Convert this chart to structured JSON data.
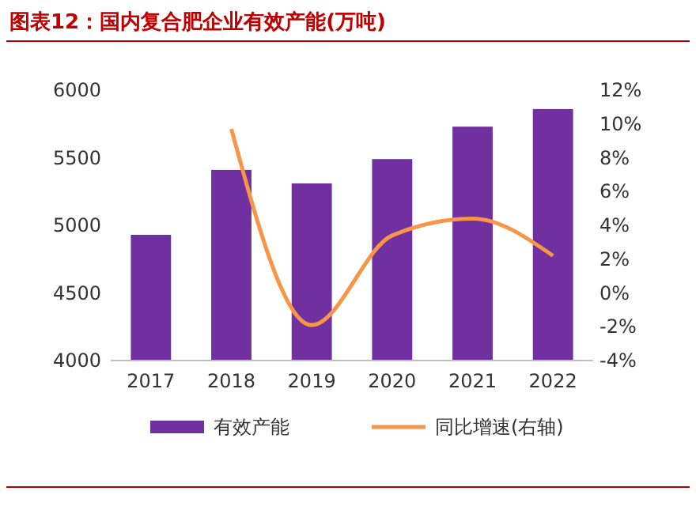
{
  "chart_data": {
    "type": "bar",
    "title": "图表12：国内复合肥企业有效产能(万吨)",
    "categories": [
      "2017",
      "2018",
      "2019",
      "2020",
      "2021",
      "2022"
    ],
    "series": [
      {
        "name": "有效产能",
        "color": "#7030a0",
        "values": [
          4930,
          5410,
          5310,
          5490,
          5730,
          5860
        ]
      },
      {
        "name": "同比增速(右轴)",
        "type": "line",
        "axis": "y2",
        "color": "#f79646",
        "values": [
          null,
          9.7,
          -1.9,
          3.4,
          4.4,
          2.2
        ]
      }
    ],
    "ylim": [
      4000,
      6000
    ],
    "yticks": [
      4000,
      4500,
      5000,
      5500,
      6000
    ],
    "y2lim": [
      -4,
      12
    ],
    "y2ticks": [
      {
        "value": -4,
        "label": "-4%"
      },
      {
        "value": -2,
        "label": "-2%"
      },
      {
        "value": 0,
        "label": "0%"
      },
      {
        "value": 2,
        "label": "2%"
      },
      {
        "value": 4,
        "label": "4%"
      },
      {
        "value": 6,
        "label": "6%"
      },
      {
        "value": 8,
        "label": "8%"
      },
      {
        "value": 10,
        "label": "10%"
      },
      {
        "value": 12,
        "label": "12%"
      }
    ],
    "legend": "bottom",
    "marker": "none"
  }
}
